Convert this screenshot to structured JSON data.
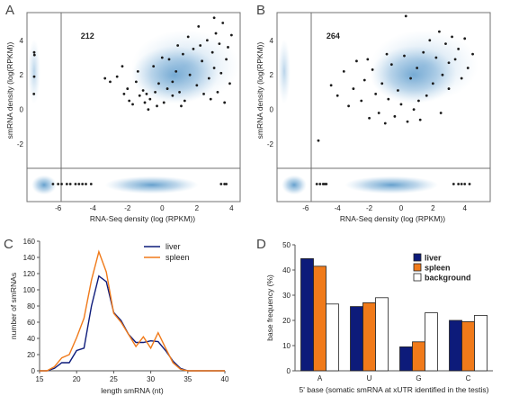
{
  "colors": {
    "blue": "#0d1b7a",
    "orange": "#f07a1a",
    "kde": "#4a8fc4",
    "point": "#1a1a1a",
    "frame": "#707070"
  },
  "chart_data": [
    {
      "panel": "A",
      "type": "scatter",
      "count_label": "212",
      "xlabel": "RNA-Seq density (log (RPKM))",
      "ylabel": "smRNA density (log(RPKM))",
      "xlim": [
        -7.8,
        4.5
      ],
      "ylim": [
        -3.4,
        5.6
      ],
      "xticks": [
        -6,
        -4,
        -2,
        0,
        2,
        4
      ],
      "yticks": [
        -2,
        0,
        2,
        4
      ],
      "points": [
        [
          -7.3,
          3.3
        ],
        [
          -7.25,
          3.15
        ],
        [
          -7.3,
          1.9
        ],
        [
          -7.35,
          0.9
        ],
        [
          -3.3,
          1.8
        ],
        [
          -3.0,
          1.6
        ],
        [
          -2.6,
          1.9
        ],
        [
          -2.3,
          2.5
        ],
        [
          -2.0,
          1.2
        ],
        [
          -1.9,
          0.5
        ],
        [
          -1.7,
          0.3
        ],
        [
          -1.5,
          1.6
        ],
        [
          -1.3,
          0.8
        ],
        [
          -1.1,
          1.1
        ],
        [
          -1.0,
          0.4
        ],
        [
          -0.9,
          0.9
        ],
        [
          -0.8,
          0.0
        ],
        [
          -0.7,
          0.6
        ],
        [
          -0.5,
          2.5
        ],
        [
          -0.3,
          0.2
        ],
        [
          -0.2,
          1.5
        ],
        [
          0.0,
          3.0
        ],
        [
          0.1,
          0.4
        ],
        [
          0.3,
          1.2
        ],
        [
          0.4,
          2.9
        ],
        [
          0.6,
          0.8
        ],
        [
          0.8,
          2.2
        ],
        [
          0.9,
          3.7
        ],
        [
          1.0,
          1.0
        ],
        [
          1.2,
          3.2
        ],
        [
          1.3,
          0.5
        ],
        [
          1.5,
          4.2
        ],
        [
          1.6,
          2.0
        ],
        [
          1.8,
          3.5
        ],
        [
          2.0,
          1.4
        ],
        [
          2.1,
          4.8
        ],
        [
          2.3,
          2.8
        ],
        [
          2.4,
          0.9
        ],
        [
          2.6,
          4.0
        ],
        [
          2.7,
          1.8
        ],
        [
          2.9,
          3.3
        ],
        [
          3.0,
          2.4
        ],
        [
          3.1,
          4.4
        ],
        [
          3.2,
          1.0
        ],
        [
          3.3,
          3.8
        ],
        [
          3.4,
          2.1
        ],
        [
          3.5,
          5.0
        ],
        [
          3.6,
          0.4
        ],
        [
          3.7,
          2.9
        ],
        [
          3.8,
          3.6
        ],
        [
          3.9,
          1.5
        ],
        [
          4.0,
          4.3
        ],
        [
          -1.4,
          2.2
        ],
        [
          -0.4,
          1.0
        ],
        [
          1.1,
          0.2
        ],
        [
          2.2,
          3.7
        ],
        [
          3.0,
          5.3
        ],
        [
          -2.2,
          0.9
        ],
        [
          0.6,
          1.6
        ],
        [
          2.8,
          0.6
        ]
      ],
      "rug_points": [
        -6.3,
        -6.0,
        -5.8,
        -5.5,
        -5.3,
        -5.0,
        -4.8,
        -4.6,
        -4.4,
        -4.1,
        3.4,
        3.6,
        3.7
      ]
    },
    {
      "panel": "B",
      "type": "scatter",
      "count_label": "264",
      "xlabel": "RNA-Seq density (log (RPKM))",
      "ylabel": "smRNA density (log(RPKM))",
      "xlim": [
        -7.8,
        5.6
      ],
      "ylim": [
        -3.4,
        5.6
      ],
      "xticks": [
        -6,
        -4,
        -2,
        0,
        2,
        4
      ],
      "yticks": [
        -2,
        0,
        2,
        4
      ],
      "points": [
        [
          -5.2,
          -1.8
        ],
        [
          -4.4,
          1.4
        ],
        [
          -4.0,
          0.8
        ],
        [
          -3.6,
          2.2
        ],
        [
          -3.3,
          0.2
        ],
        [
          -3.0,
          1.2
        ],
        [
          -2.8,
          2.8
        ],
        [
          -2.5,
          0.5
        ],
        [
          -2.3,
          1.7
        ],
        [
          -2.0,
          -0.5
        ],
        [
          -1.8,
          2.3
        ],
        [
          -1.6,
          0.9
        ],
        [
          -1.4,
          -0.2
        ],
        [
          -1.2,
          1.5
        ],
        [
          -1.0,
          -0.8
        ],
        [
          -0.8,
          0.6
        ],
        [
          -0.6,
          2.6
        ],
        [
          -0.4,
          -0.4
        ],
        [
          -0.2,
          1.1
        ],
        [
          0.0,
          0.3
        ],
        [
          0.2,
          3.1
        ],
        [
          0.4,
          -0.7
        ],
        [
          0.6,
          1.8
        ],
        [
          0.8,
          0.0
        ],
        [
          1.0,
          2.4
        ],
        [
          1.2,
          -0.6
        ],
        [
          1.4,
          3.3
        ],
        [
          1.6,
          0.8
        ],
        [
          1.8,
          4.0
        ],
        [
          2.0,
          1.5
        ],
        [
          2.2,
          3.0
        ],
        [
          2.4,
          4.5
        ],
        [
          2.6,
          2.0
        ],
        [
          2.8,
          3.8
        ],
        [
          3.0,
          1.2
        ],
        [
          3.2,
          4.2
        ],
        [
          3.4,
          2.9
        ],
        [
          3.6,
          3.5
        ],
        [
          3.8,
          1.8
        ],
        [
          4.0,
          4.1
        ],
        [
          4.2,
          2.4
        ],
        [
          4.5,
          3.2
        ],
        [
          0.3,
          5.4
        ],
        [
          -2.1,
          2.9
        ],
        [
          1.1,
          0.5
        ],
        [
          3.0,
          2.7
        ],
        [
          -0.9,
          3.2
        ],
        [
          2.5,
          -0.2
        ]
      ],
      "rug_points": [
        -5.3,
        -5.1,
        -4.9,
        -4.8,
        -4.7,
        3.3,
        3.6,
        3.8,
        4.0,
        4.3
      ]
    },
    {
      "panel": "C",
      "type": "line",
      "xlabel": "length smRNA (nt)",
      "ylabel": "number of smRNAs",
      "xlim": [
        15,
        40
      ],
      "ylim": [
        0,
        160
      ],
      "xticks": [
        15,
        20,
        25,
        30,
        35,
        40
      ],
      "yticks": [
        0,
        20,
        40,
        60,
        80,
        100,
        120,
        140,
        160
      ],
      "series": [
        {
          "name": "liver",
          "x": [
            15,
            16,
            17,
            18,
            19,
            20,
            21,
            22,
            23,
            24,
            25,
            26,
            27,
            28,
            29,
            30,
            31,
            32,
            33,
            34,
            35,
            36,
            37,
            38,
            39,
            40
          ],
          "y": [
            0,
            0,
            3,
            10,
            10,
            25,
            28,
            80,
            117,
            110,
            72,
            62,
            45,
            35,
            35,
            37,
            36,
            25,
            12,
            3,
            0,
            0,
            0,
            0,
            0,
            0
          ]
        },
        {
          "name": "spleen",
          "x": [
            15,
            16,
            17,
            18,
            19,
            20,
            21,
            22,
            23,
            24,
            25,
            26,
            27,
            28,
            29,
            30,
            31,
            32,
            33,
            34,
            35,
            36,
            37,
            38,
            39,
            40
          ],
          "y": [
            0,
            0,
            5,
            16,
            20,
            41,
            65,
            112,
            147,
            122,
            71,
            60,
            45,
            30,
            42,
            28,
            47,
            28,
            10,
            2,
            0,
            0,
            0,
            0,
            0,
            0
          ]
        }
      ]
    },
    {
      "panel": "D",
      "type": "bar",
      "xlabel": "5' base (somatic smRNA at xUTR identified in the testis)",
      "ylabel": "base frequency (%)",
      "ylim": [
        0,
        50
      ],
      "yticks": [
        0,
        10,
        20,
        30,
        40,
        50
      ],
      "categories": [
        "A",
        "U",
        "G",
        "C"
      ],
      "series": [
        {
          "name": "liver",
          "values": [
            44.5,
            25.5,
            9.5,
            20.0
          ]
        },
        {
          "name": "spleen",
          "values": [
            41.5,
            27.0,
            11.5,
            19.5
          ]
        },
        {
          "name": "background",
          "values": [
            26.5,
            29.0,
            23.0,
            22.0
          ]
        }
      ]
    }
  ]
}
